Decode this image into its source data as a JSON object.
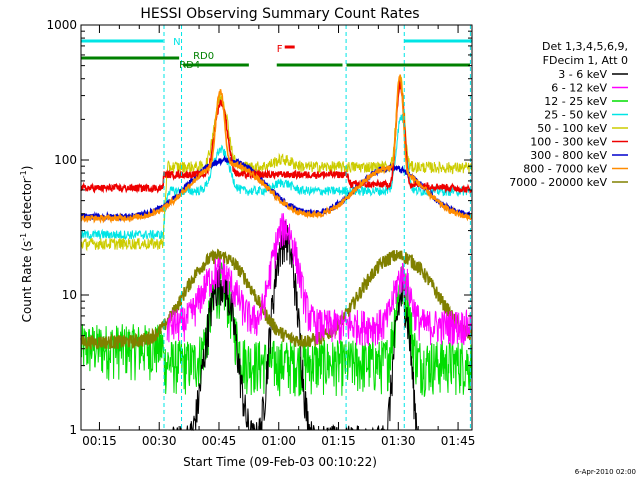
{
  "chart_data": {
    "type": "line",
    "title": "HESSI Observing Summary Count Rates",
    "xlabel": "Start Time (09-Feb-03 00:10:22)",
    "ylabel": "Count Rate (s",
    "ylabel_sup1": "-1",
    "ylabel_mid": " detector",
    "ylabel_sup2": "-1",
    "ylabel_end": ")",
    "y_scale": "log",
    "ylim": [
      1,
      1000
    ],
    "xlim_minutes": [
      10.37,
      108.5
    ],
    "x_ticks": [
      {
        "label": "00:15",
        "min": 15
      },
      {
        "label": "00:30",
        "min": 30
      },
      {
        "label": "00:45",
        "min": 45
      },
      {
        "label": "01:00",
        "min": 60
      },
      {
        "label": "01:15",
        "min": 75
      },
      {
        "label": "01:30",
        "min": 90
      },
      {
        "label": "01:45",
        "min": 105
      }
    ],
    "y_ticks": [
      {
        "label": "1",
        "v": 1
      },
      {
        "label": "10",
        "v": 10
      },
      {
        "label": "100",
        "v": 100
      },
      {
        "label": "1000",
        "v": 1000
      }
    ],
    "legend": {
      "header1": "Det 1,3,4,5,6,9,",
      "header2": "FDecim 1, Att 0",
      "entries": [
        {
          "label": "3 - 6 keV",
          "color": "#000000"
        },
        {
          "label": "6 - 12 keV",
          "color": "#ff00ff"
        },
        {
          "label": "12 - 25 keV",
          "color": "#00dd00"
        },
        {
          "label": "25 - 50 keV",
          "color": "#00e5e5"
        },
        {
          "label": "50 - 100 keV",
          "color": "#cccc00"
        },
        {
          "label": "100 - 300 keV",
          "color": "#ee0000"
        },
        {
          "label": "300 - 800 keV",
          "color": "#0000cc"
        },
        {
          "label": "800 - 7000 keV",
          "color": "#ff8c00"
        },
        {
          "label": "7000 - 20000 keV",
          "color": "#808000"
        }
      ]
    },
    "flags": [
      {
        "label": "N",
        "color": "#00e5e5",
        "segments": [
          [
            10.4,
            31
          ],
          [
            91.5,
            108.5
          ]
        ]
      },
      {
        "label": "RD0",
        "color": "#008000",
        "segments": [
          [
            36,
            52.5
          ],
          [
            59.5,
            76
          ],
          [
            77,
            108
          ]
        ]
      },
      {
        "label": "RD4",
        "color": "#008000",
        "segments": [
          [
            10.4,
            35
          ]
        ]
      },
      {
        "label": "F",
        "color": "#ee0000",
        "segments": [
          [
            61.5,
            64
          ]
        ]
      }
    ],
    "vertical_markers_minutes": [
      31.2,
      35.6,
      76.9,
      91.5,
      108.1
    ],
    "footer": "6-Apr-2010 02:00"
  }
}
